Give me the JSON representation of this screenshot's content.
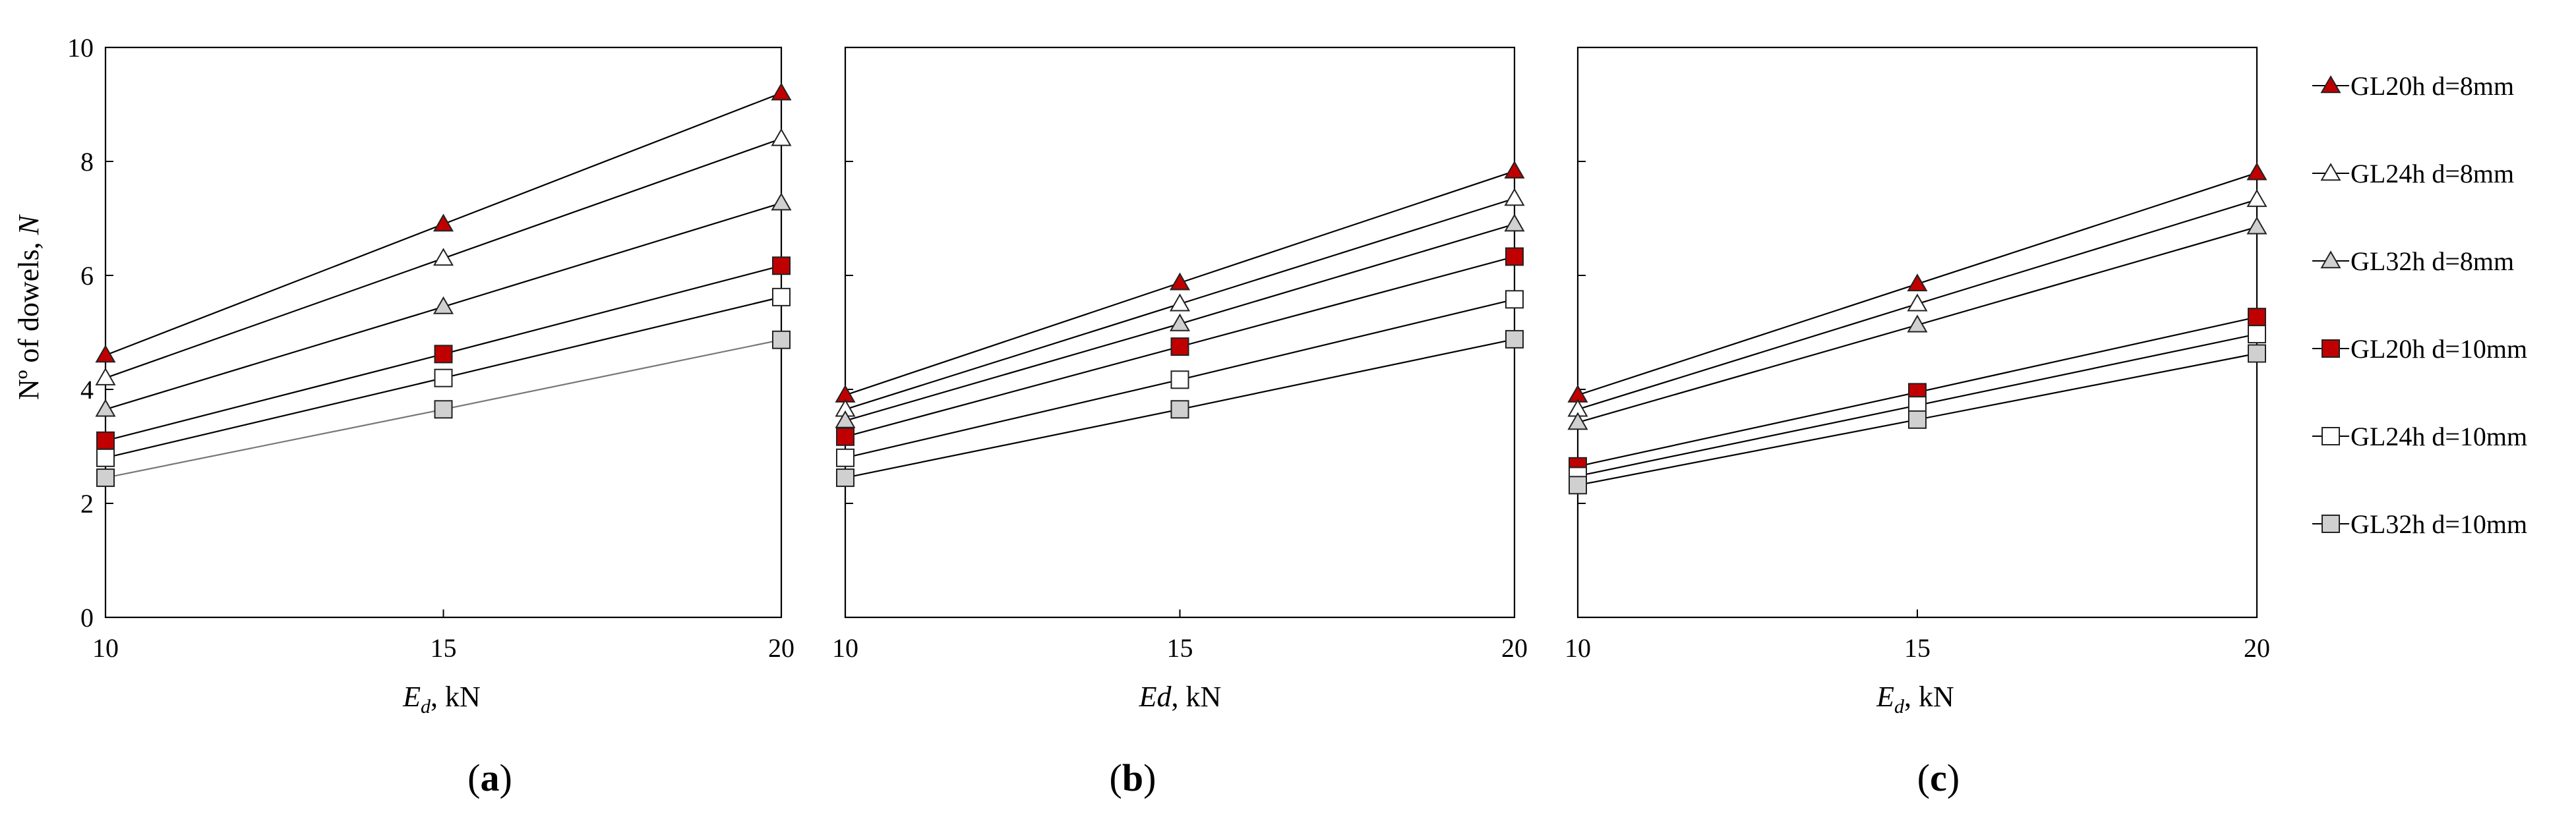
{
  "legend": {
    "placement": "right",
    "entries": [
      {
        "label": "GL20h d=8mm",
        "marker": "triangle",
        "fill": "#c00000"
      },
      {
        "label": "GL24h d=8mm",
        "marker": "triangle",
        "fill": "#ffffff"
      },
      {
        "label": "GL32h d=8mm",
        "marker": "triangle",
        "fill": "#d0d0d0"
      },
      {
        "label": "GL20h d=10mm",
        "marker": "square",
        "fill": "#c00000"
      },
      {
        "label": "GL24h d=10mm",
        "marker": "square",
        "fill": "#ffffff"
      },
      {
        "label": "GL32h d=10mm",
        "marker": "square",
        "fill": "#d0d0d0"
      }
    ]
  },
  "y_axis_label": {
    "main": "Nº of dowels, ",
    "italic": "N"
  },
  "chart_data": [
    {
      "type": "line",
      "panel_label": {
        "open": "(",
        "letter": "a",
        "close": ")"
      },
      "xlabel": {
        "italic": "E",
        "sub": "d",
        "rest": ", kN"
      },
      "ylabel": "Nº of dowels, N",
      "x": [
        10,
        15,
        20
      ],
      "xticks": [
        "10",
        "15",
        "20"
      ],
      "yticks": [
        "0",
        "2",
        "4",
        "6",
        "8",
        "10"
      ],
      "xlim": [
        10,
        20
      ],
      "ylim": [
        0,
        10
      ],
      "grid": false,
      "series": [
        {
          "name": "GL20h d=8mm",
          "values": [
            4.6,
            6.9,
            9.2
          ]
        },
        {
          "name": "GL24h d=8mm",
          "values": [
            4.2,
            6.3,
            8.4
          ]
        },
        {
          "name": "GL32h d=8mm",
          "values": [
            3.65,
            5.45,
            7.27
          ]
        },
        {
          "name": "GL20h d=10mm",
          "values": [
            3.1,
            4.62,
            6.17
          ]
        },
        {
          "name": "GL24h d=10mm",
          "values": [
            2.8,
            4.2,
            5.62
          ]
        },
        {
          "name": "GL32h d=10mm",
          "values": [
            2.45,
            3.65,
            4.87
          ]
        }
      ]
    },
    {
      "type": "line",
      "panel_label": {
        "open": "(",
        "letter": "b",
        "close": ")"
      },
      "xlabel": {
        "italic": "Ed",
        "sub": "",
        "rest": ", kN"
      },
      "x": [
        10,
        15,
        20
      ],
      "xticks": [
        "10",
        "15",
        "20"
      ],
      "xlim": [
        10,
        20
      ],
      "ylim": [
        0,
        10
      ],
      "grid": false,
      "series": [
        {
          "name": "GL20h d=8mm",
          "values": [
            3.9,
            5.87,
            7.83
          ]
        },
        {
          "name": "GL24h d=8mm",
          "values": [
            3.65,
            5.5,
            7.35
          ]
        },
        {
          "name": "GL32h d=8mm",
          "values": [
            3.45,
            5.15,
            6.9
          ]
        },
        {
          "name": "GL20h d=10mm",
          "values": [
            3.17,
            4.75,
            6.33
          ]
        },
        {
          "name": "GL24h d=10mm",
          "values": [
            2.8,
            4.17,
            5.58
          ]
        },
        {
          "name": "GL32h d=10mm",
          "values": [
            2.45,
            3.65,
            4.88
          ]
        }
      ]
    },
    {
      "type": "line",
      "panel_label": {
        "open": "(",
        "letter": "c",
        "close": ")"
      },
      "xlabel": {
        "italic": "E",
        "sub": "d",
        "rest": ", kN"
      },
      "x": [
        10,
        15,
        20
      ],
      "xticks": [
        "10",
        "15",
        "20"
      ],
      "xlim": [
        10,
        20
      ],
      "ylim": [
        0,
        10
      ],
      "grid": false,
      "series": [
        {
          "name": "GL20h d=8mm",
          "values": [
            3.9,
            5.85,
            7.8
          ]
        },
        {
          "name": "GL24h d=8mm",
          "values": [
            3.65,
            5.5,
            7.33
          ]
        },
        {
          "name": "GL32h d=8mm",
          "values": [
            3.42,
            5.13,
            6.85
          ]
        },
        {
          "name": "GL20h d=10mm",
          "values": [
            2.65,
            3.95,
            5.27
          ]
        },
        {
          "name": "GL24h d=10mm",
          "values": [
            2.48,
            3.72,
            4.97
          ]
        },
        {
          "name": "GL32h d=10mm",
          "values": [
            2.32,
            3.47,
            4.63
          ]
        }
      ]
    }
  ]
}
